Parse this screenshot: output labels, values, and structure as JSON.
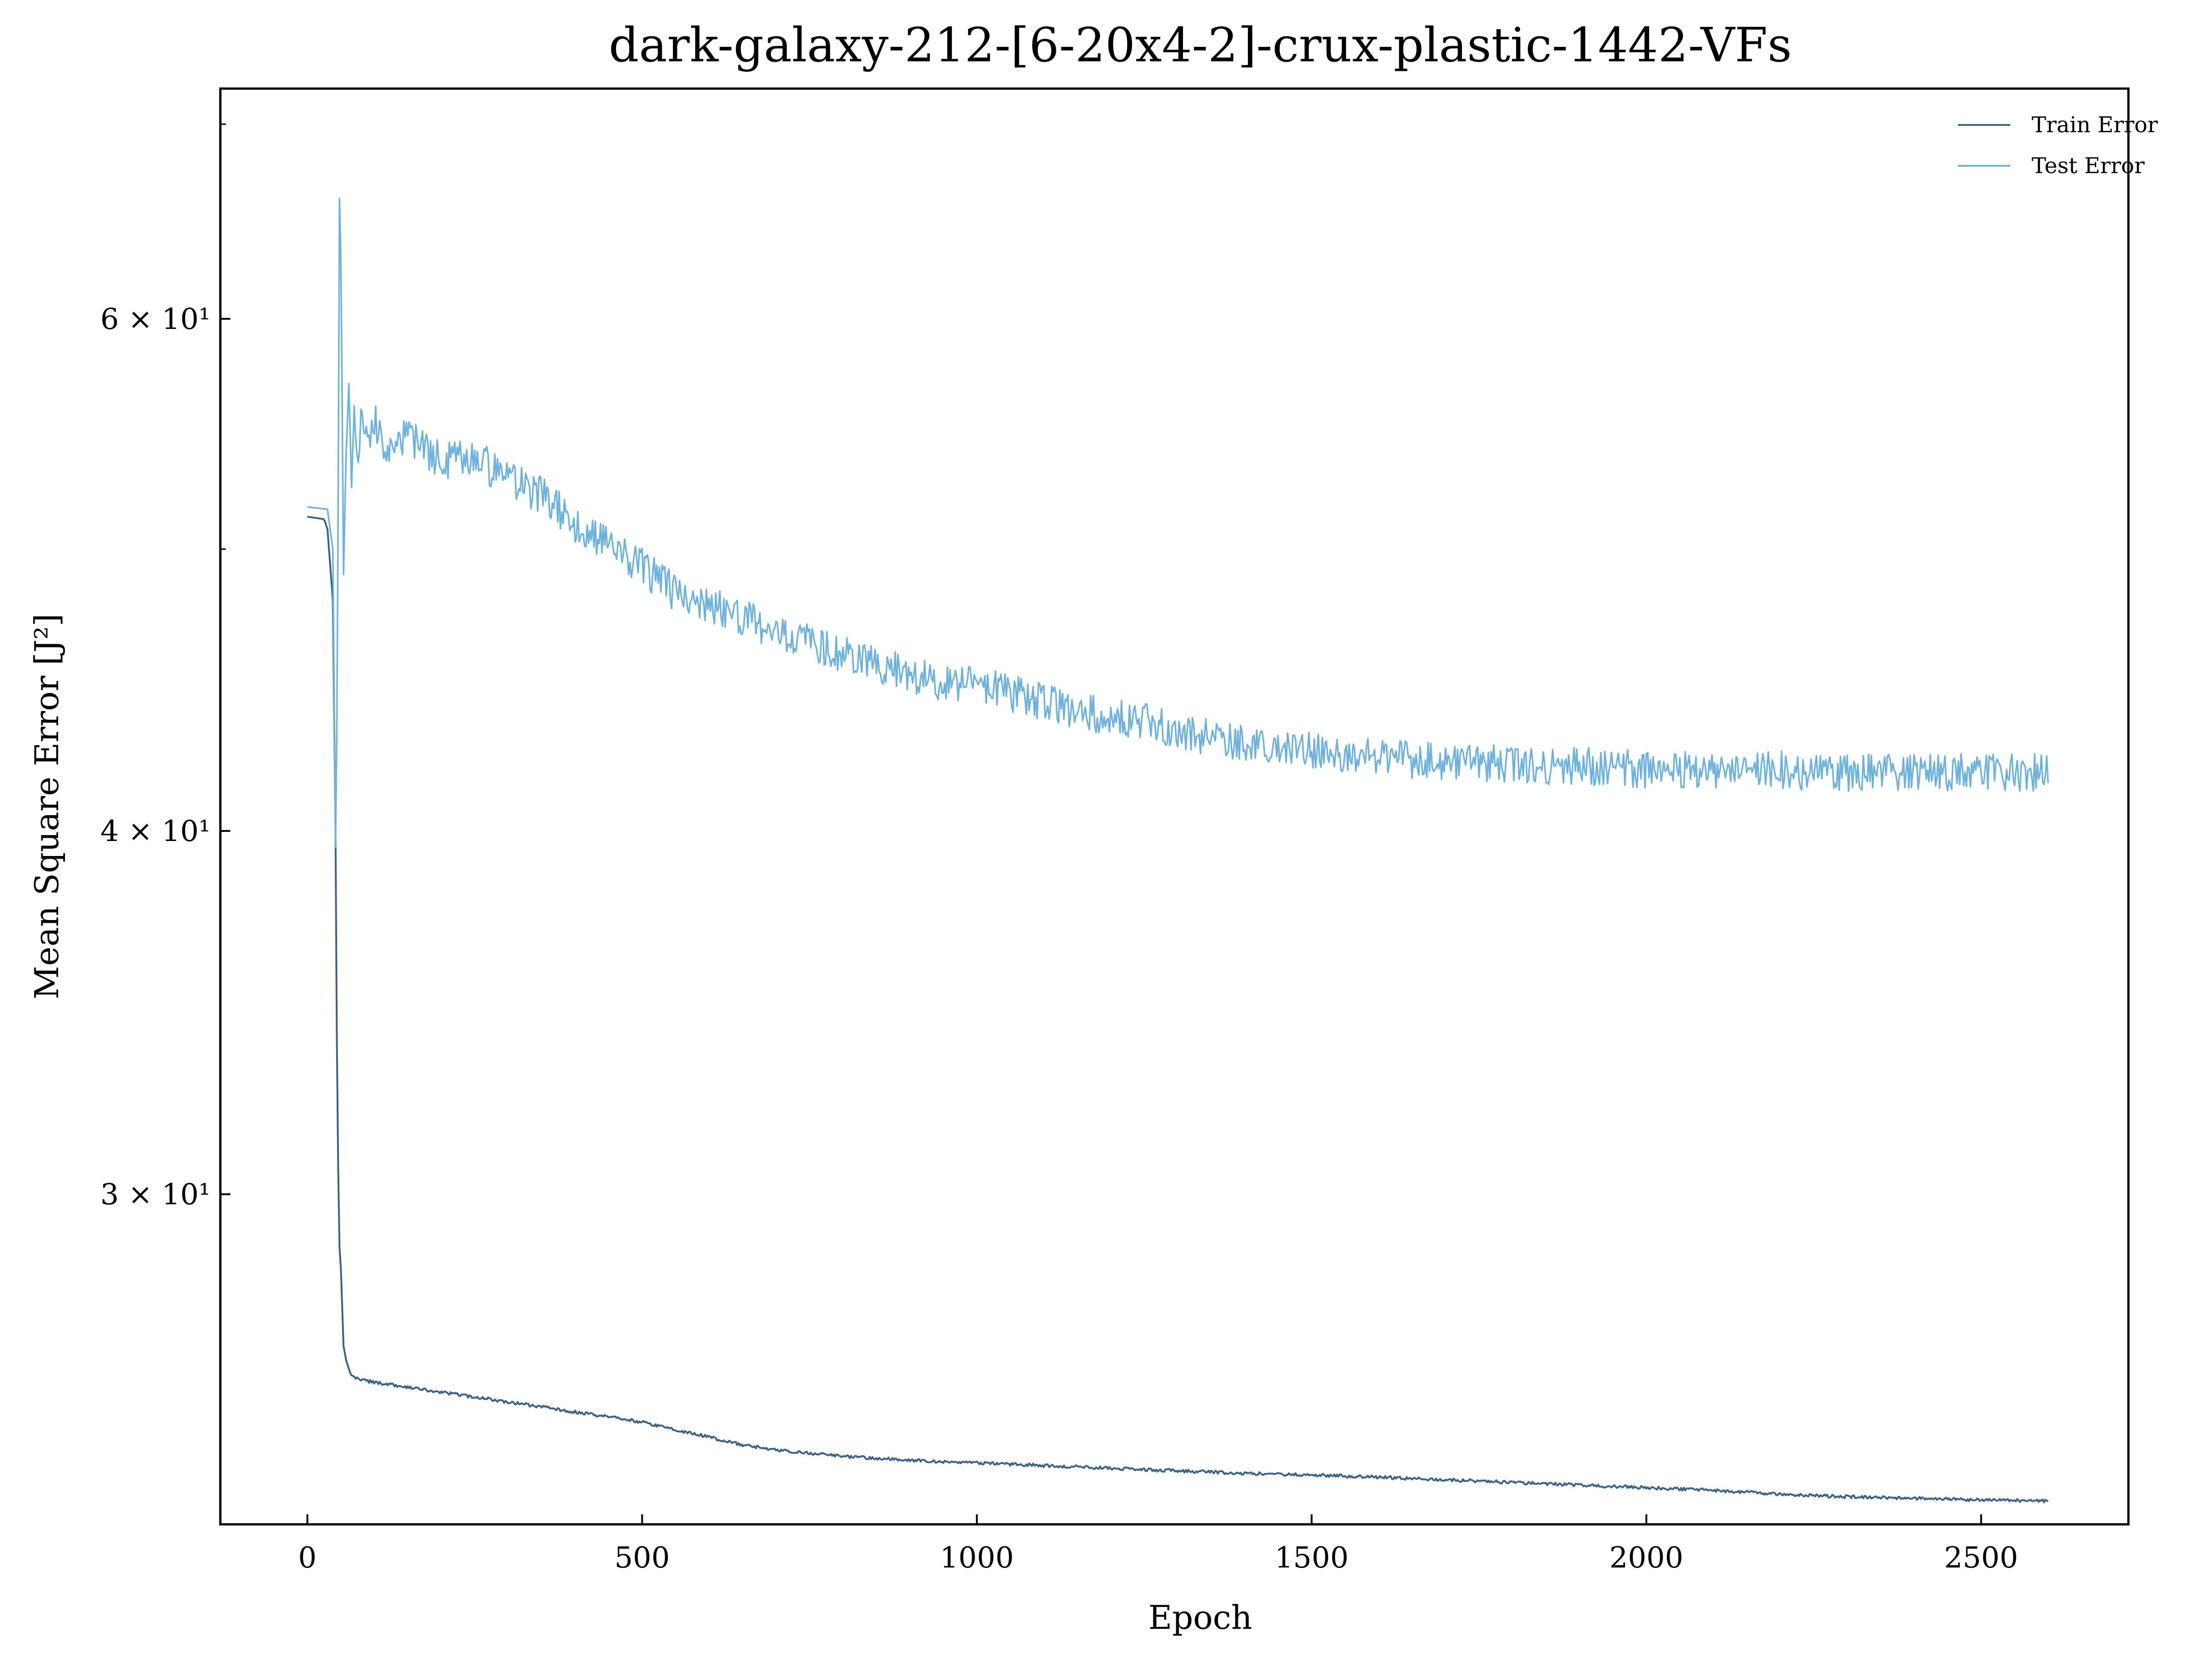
{
  "chart_data": {
    "type": "line",
    "title": "dark-galaxy-212-[6-20x4-2]-crux-plastic-1442-VFs",
    "xlabel": "Epoch",
    "ylabel": "Mean Square Error [J²]",
    "xlim": [
      -130,
      2720
    ],
    "ylim": [
      23.1,
      72.0
    ],
    "yscale": "log",
    "grid": false,
    "legend_position": "top-right",
    "xticks": [
      0,
      500,
      1000,
      1500,
      2000,
      2500
    ],
    "xtick_labels": [
      "0",
      "500",
      "1000",
      "1500",
      "2000",
      "2500"
    ],
    "yticks": [
      30,
      40,
      60
    ],
    "ytick_labels": [
      "3 × 10¹",
      "4 × 10¹",
      "6 × 10¹"
    ],
    "series": [
      {
        "name": "Train Error",
        "color": "#3b6286",
        "x": [
          0,
          25,
          30,
          38,
          42,
          44,
          47,
          50,
          54,
          58,
          65,
          80,
          100,
          150,
          200,
          300,
          400,
          500,
          550,
          600,
          650,
          700,
          800,
          900,
          1000,
          1100,
          1200,
          1300,
          1400,
          1500,
          1600,
          1700,
          1800,
          1900,
          2000,
          2100,
          2200,
          2300,
          2400,
          2500,
          2600
        ],
        "y": [
          51.3,
          51.2,
          50.8,
          48.0,
          40.0,
          34.0,
          29.0,
          28.3,
          26.6,
          26.3,
          26.0,
          25.9,
          25.85,
          25.75,
          25.65,
          25.45,
          25.25,
          25.05,
          24.9,
          24.75,
          24.6,
          24.5,
          24.38,
          24.3,
          24.25,
          24.2,
          24.15,
          24.1,
          24.05,
          24.02,
          23.98,
          23.93,
          23.88,
          23.83,
          23.78,
          23.73,
          23.66,
          23.61,
          23.58,
          23.55,
          23.53
        ]
      },
      {
        "name": "Test Error",
        "color": "#6eb2de",
        "x": [
          0,
          30,
          38,
          42,
          45,
          48,
          50,
          54,
          58,
          62,
          66,
          70,
          75,
          80,
          90,
          100,
          120,
          150,
          200,
          250,
          300,
          350,
          400,
          450,
          500,
          550,
          600,
          650,
          700,
          750,
          800,
          850,
          900,
          950,
          1000,
          1050,
          1100,
          1150,
          1200,
          1250,
          1300,
          1350,
          1400,
          1450,
          1500,
          1550,
          1600,
          1650,
          1700,
          1750,
          1800,
          1850,
          1900,
          1950,
          2000,
          2050,
          2100,
          2150,
          2200,
          2250,
          2300,
          2350,
          2400,
          2450,
          2500,
          2550,
          2600
        ],
        "y": [
          51.7,
          51.6,
          50.0,
          39.5,
          45.0,
          66.0,
          63.0,
          49.0,
          54.0,
          57.0,
          52.5,
          56.0,
          54.0,
          55.5,
          54.5,
          55.3,
          54.2,
          54.6,
          53.6,
          53.8,
          52.8,
          52.2,
          51.0,
          50.3,
          49.3,
          48.3,
          47.8,
          47.4,
          46.8,
          46.4,
          46.0,
          45.7,
          45.3,
          45.0,
          44.9,
          44.6,
          44.3,
          44.0,
          43.8,
          43.6,
          43.3,
          43.1,
          42.9,
          42.8,
          42.6,
          42.5,
          42.4,
          42.3,
          42.3,
          42.2,
          42.2,
          42.1,
          42.1,
          42.1,
          42.0,
          42.0,
          42.0,
          42.0,
          42.0,
          41.9,
          41.9,
          41.9,
          41.9,
          41.9,
          41.9,
          41.9,
          41.9
        ]
      }
    ]
  }
}
